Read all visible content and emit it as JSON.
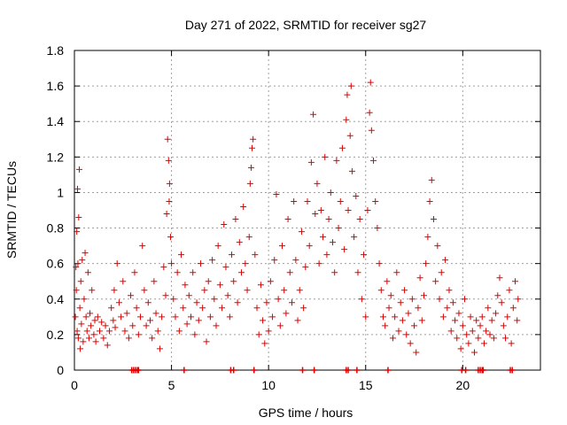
{
  "chart_data": {
    "type": "scatter",
    "title": "Day 271 of 2022, SRMTID for receiver sg27",
    "xlabel": "GPS time / hours",
    "ylabel": "SRMTID / TECUs",
    "xlim": [
      0,
      24
    ],
    "ylim": [
      0,
      1.8
    ],
    "grid": true,
    "x_ticks": [
      0,
      5,
      10,
      15,
      20
    ],
    "x_tick_labels": [
      "0",
      "5",
      "10",
      "15",
      "20"
    ],
    "y_ticks": [
      0,
      0.2,
      0.4,
      0.6,
      0.8,
      1.0,
      1.2,
      1.4,
      1.6,
      1.8
    ],
    "y_tick_labels": [
      "0",
      "0.2",
      "0.4",
      "0.6",
      "0.8",
      "1",
      "1.2",
      "1.4",
      "1.6",
      "1.8"
    ],
    "marker": "+",
    "series": [
      {
        "name": "SRMTID",
        "color": "#e00000",
        "points": [
          [
            0.05,
            0.3
          ],
          [
            0.08,
            0.58
          ],
          [
            0.1,
            0.45
          ],
          [
            0.12,
            0.78
          ],
          [
            0.14,
            0.22
          ],
          [
            0.16,
            1.02
          ],
          [
            0.18,
            0.6
          ],
          [
            0.2,
            0.18
          ],
          [
            0.22,
            0.86
          ],
          [
            0.25,
            1.13
          ],
          [
            0.28,
            0.35
          ],
          [
            0.3,
            0.12
          ],
          [
            0.33,
            0.5
          ],
          [
            0.36,
            0.26
          ],
          [
            0.4,
            0.62
          ],
          [
            0.45,
            0.16
          ],
          [
            0.5,
            0.4
          ],
          [
            0.55,
            0.66
          ],
          [
            0.6,
            0.3
          ],
          [
            0.65,
            0.22
          ],
          [
            0.7,
            0.55
          ],
          [
            0.75,
            0.18
          ],
          [
            0.8,
            0.32
          ],
          [
            0.85,
            0.25
          ],
          [
            0.9,
            0.45
          ],
          [
            1.0,
            0.2
          ],
          [
            1.05,
            0.28
          ],
          [
            1.1,
            0.16
          ],
          [
            1.2,
            0.3
          ],
          [
            1.3,
            0.22
          ],
          [
            1.4,
            0.27
          ],
          [
            1.5,
            0.18
          ],
          [
            1.6,
            0.25
          ],
          [
            1.7,
            0.14
          ],
          [
            1.8,
            0.22
          ],
          [
            1.9,
            0.35
          ],
          [
            2.0,
            0.28
          ],
          [
            2.05,
            0.45
          ],
          [
            2.1,
            0.24
          ],
          [
            2.2,
            0.6
          ],
          [
            2.3,
            0.38
          ],
          [
            2.4,
            0.3
          ],
          [
            2.5,
            0.5
          ],
          [
            2.6,
            0.22
          ],
          [
            2.7,
            0.32
          ],
          [
            2.8,
            0.18
          ],
          [
            2.9,
            0.42
          ],
          [
            3.0,
            0.25
          ],
          [
            3.1,
            0.55
          ],
          [
            3.2,
            0.35
          ],
          [
            3.3,
            0.2
          ],
          [
            3.4,
            0.3
          ],
          [
            3.5,
            0.7
          ],
          [
            3.6,
            0.45
          ],
          [
            3.7,
            0.25
          ],
          [
            3.8,
            0.38
          ],
          [
            3.9,
            0.28
          ],
          [
            4.0,
            0.18
          ],
          [
            4.1,
            0.5
          ],
          [
            4.2,
            0.32
          ],
          [
            4.3,
            0.22
          ],
          [
            4.4,
            0.12
          ],
          [
            4.5,
            0.3
          ],
          [
            4.6,
            0.58
          ],
          [
            4.7,
            0.42
          ],
          [
            4.75,
            0.88
          ],
          [
            4.8,
            1.3
          ],
          [
            4.85,
            1.18
          ],
          [
            4.88,
            0.95
          ],
          [
            4.9,
            1.05
          ],
          [
            4.95,
            0.75
          ],
          [
            5.0,
            0.6
          ],
          [
            5.1,
            0.4
          ],
          [
            5.2,
            0.3
          ],
          [
            5.3,
            0.55
          ],
          [
            5.4,
            0.22
          ],
          [
            5.5,
            0.65
          ],
          [
            5.6,
            0.35
          ],
          [
            5.7,
            0.48
          ],
          [
            5.8,
            0.26
          ],
          [
            5.9,
            0.42
          ],
          [
            6.0,
            0.3
          ],
          [
            6.1,
            0.55
          ],
          [
            6.2,
            0.2
          ],
          [
            6.3,
            0.38
          ],
          [
            6.4,
            0.28
          ],
          [
            6.5,
            0.6
          ],
          [
            6.6,
            0.35
          ],
          [
            6.7,
            0.45
          ],
          [
            6.8,
            0.16
          ],
          [
            6.9,
            0.5
          ],
          [
            7.0,
            0.3
          ],
          [
            7.1,
            0.62
          ],
          [
            7.2,
            0.4
          ],
          [
            7.3,
            0.25
          ],
          [
            7.4,
            0.7
          ],
          [
            7.5,
            0.48
          ],
          [
            7.6,
            0.35
          ],
          [
            7.7,
            0.82
          ],
          [
            7.8,
            0.58
          ],
          [
            7.9,
            0.42
          ],
          [
            8.0,
            0.3
          ],
          [
            8.1,
            0.65
          ],
          [
            8.2,
            0.5
          ],
          [
            8.3,
            0.85
          ],
          [
            8.4,
            0.38
          ],
          [
            8.5,
            0.72
          ],
          [
            8.6,
            0.55
          ],
          [
            8.7,
            0.92
          ],
          [
            8.8,
            0.6
          ],
          [
            8.9,
            0.45
          ],
          [
            9.0,
            0.75
          ],
          [
            9.05,
            1.05
          ],
          [
            9.1,
            1.14
          ],
          [
            9.15,
            1.25
          ],
          [
            9.2,
            1.3
          ],
          [
            9.3,
            0.65
          ],
          [
            9.4,
            0.35
          ],
          [
            9.5,
            0.2
          ],
          [
            9.6,
            0.48
          ],
          [
            9.7,
            0.28
          ],
          [
            9.8,
            0.15
          ],
          [
            9.9,
            0.38
          ],
          [
            10.0,
            0.22
          ],
          [
            10.1,
            0.5
          ],
          [
            10.2,
            0.3
          ],
          [
            10.3,
            0.62
          ],
          [
            10.4,
            0.99
          ],
          [
            10.5,
            0.4
          ],
          [
            10.6,
            0.25
          ],
          [
            10.7,
            0.7
          ],
          [
            10.8,
            0.45
          ],
          [
            10.9,
            0.32
          ],
          [
            11.0,
            0.85
          ],
          [
            11.1,
            0.55
          ],
          [
            11.2,
            0.38
          ],
          [
            11.3,
            0.95
          ],
          [
            11.4,
            0.62
          ],
          [
            11.5,
            0.28
          ],
          [
            11.6,
            0.45
          ],
          [
            11.7,
            0.78
          ],
          [
            11.8,
            0.35
          ],
          [
            11.9,
            0.58
          ],
          [
            12.0,
            0.95
          ],
          [
            12.1,
            0.7
          ],
          [
            12.2,
            1.17
          ],
          [
            12.3,
            1.44
          ],
          [
            12.4,
            0.88
          ],
          [
            12.5,
            1.05
          ],
          [
            12.6,
            0.6
          ],
          [
            12.7,
            0.9
          ],
          [
            12.8,
            0.75
          ],
          [
            12.9,
            1.2
          ],
          [
            13.0,
            0.65
          ],
          [
            13.1,
            0.85
          ],
          [
            13.2,
            1.0
          ],
          [
            13.3,
            0.72
          ],
          [
            13.4,
            0.55
          ],
          [
            13.5,
            1.18
          ],
          [
            13.6,
            0.8
          ],
          [
            13.7,
            0.95
          ],
          [
            13.8,
            1.25
          ],
          [
            13.9,
            0.68
          ],
          [
            14.0,
            1.41
          ],
          [
            14.05,
            1.55
          ],
          [
            14.1,
            0.9
          ],
          [
            14.2,
            1.32
          ],
          [
            14.25,
            1.6
          ],
          [
            14.3,
            1.12
          ],
          [
            14.4,
            0.75
          ],
          [
            14.5,
            0.98
          ],
          [
            14.6,
            0.55
          ],
          [
            14.7,
            0.85
          ],
          [
            14.8,
            0.4
          ],
          [
            14.9,
            0.65
          ],
          [
            15.0,
            0.3
          ],
          [
            15.1,
            0.9
          ],
          [
            15.2,
            1.45
          ],
          [
            15.25,
            1.62
          ],
          [
            15.3,
            1.35
          ],
          [
            15.4,
            1.18
          ],
          [
            15.5,
            0.95
          ],
          [
            15.6,
            0.8
          ],
          [
            15.7,
            0.6
          ],
          [
            15.8,
            0.45
          ],
          [
            15.9,
            0.3
          ],
          [
            16.0,
            0.25
          ],
          [
            16.1,
            0.5
          ],
          [
            16.2,
            0.35
          ],
          [
            16.3,
            0.42
          ],
          [
            16.4,
            0.18
          ],
          [
            16.5,
            0.3
          ],
          [
            16.6,
            0.55
          ],
          [
            16.7,
            0.22
          ],
          [
            16.8,
            0.38
          ],
          [
            16.9,
            0.28
          ],
          [
            17.0,
            0.45
          ],
          [
            17.1,
            0.2
          ],
          [
            17.2,
            0.32
          ],
          [
            17.3,
            0.15
          ],
          [
            17.4,
            0.4
          ],
          [
            17.5,
            0.25
          ],
          [
            17.6,
            0.1
          ],
          [
            17.7,
            0.35
          ],
          [
            17.8,
            0.52
          ],
          [
            17.9,
            0.28
          ],
          [
            18.0,
            0.42
          ],
          [
            18.1,
            0.6
          ],
          [
            18.2,
            0.75
          ],
          [
            18.3,
            0.95
          ],
          [
            18.4,
            1.07
          ],
          [
            18.5,
            0.85
          ],
          [
            18.6,
            0.5
          ],
          [
            18.7,
            0.7
          ],
          [
            18.8,
            0.4
          ],
          [
            18.9,
            0.55
          ],
          [
            19.0,
            0.3
          ],
          [
            19.1,
            0.62
          ],
          [
            19.2,
            0.35
          ],
          [
            19.3,
            0.45
          ],
          [
            19.4,
            0.22
          ],
          [
            19.5,
            0.38
          ],
          [
            19.6,
            0.28
          ],
          [
            19.7,
            0.18
          ],
          [
            19.8,
            0.32
          ],
          [
            19.9,
            0.12
          ],
          [
            20.0,
            0.25
          ],
          [
            20.1,
            0.4
          ],
          [
            20.2,
            0.2
          ],
          [
            20.3,
            0.15
          ],
          [
            20.4,
            0.3
          ],
          [
            20.5,
            0.22
          ],
          [
            20.6,
            0.1
          ],
          [
            20.7,
            0.28
          ],
          [
            20.8,
            0.18
          ],
          [
            20.9,
            0.25
          ],
          [
            21.0,
            0.3
          ],
          [
            21.1,
            0.15
          ],
          [
            21.2,
            0.22
          ],
          [
            21.3,
            0.35
          ],
          [
            21.4,
            0.2
          ],
          [
            21.5,
            0.28
          ],
          [
            21.6,
            0.18
          ],
          [
            21.7,
            0.32
          ],
          [
            21.8,
            0.42
          ],
          [
            21.9,
            0.52
          ],
          [
            22.0,
            0.38
          ],
          [
            22.1,
            0.25
          ],
          [
            22.2,
            0.18
          ],
          [
            22.3,
            0.3
          ],
          [
            22.4,
            0.45
          ],
          [
            22.5,
            0.15
          ],
          [
            22.6,
            0.35
          ],
          [
            22.7,
            0.5
          ],
          [
            22.8,
            0.28
          ],
          [
            22.85,
            0.4
          ]
        ]
      }
    ],
    "zero_markers_x": [
      2.95,
      3.05,
      3.15,
      3.25,
      3.3,
      5.65,
      8.05,
      8.2,
      9.25,
      11.75,
      12.35,
      14.0,
      14.1,
      14.55,
      16.15,
      19.95,
      20.15,
      20.8,
      20.9,
      21.0,
      21.05,
      22.45,
      22.55
    ]
  }
}
